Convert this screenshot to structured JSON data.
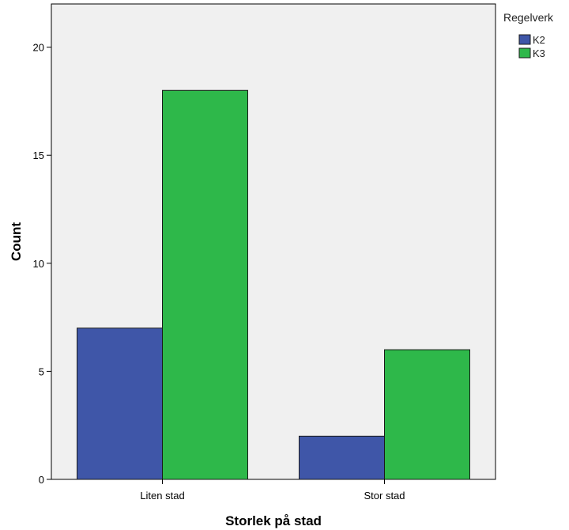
{
  "chart_data": {
    "type": "bar",
    "title": "",
    "xlabel": "Storlek på stad",
    "ylabel": "Count",
    "categories": [
      "Liten stad",
      "Stor stad"
    ],
    "series": [
      {
        "name": "K2",
        "values": [
          7,
          2
        ],
        "color": "#3f56a8"
      },
      {
        "name": "K3",
        "values": [
          18,
          6
        ],
        "color": "#2eb84a"
      }
    ],
    "ylim": [
      0,
      22
    ],
    "yticks": [
      0,
      5,
      10,
      15,
      20
    ],
    "grid": false,
    "legend": {
      "title": "Regelverk",
      "position": "top-right"
    },
    "plot_background": "#f0f0f0"
  }
}
